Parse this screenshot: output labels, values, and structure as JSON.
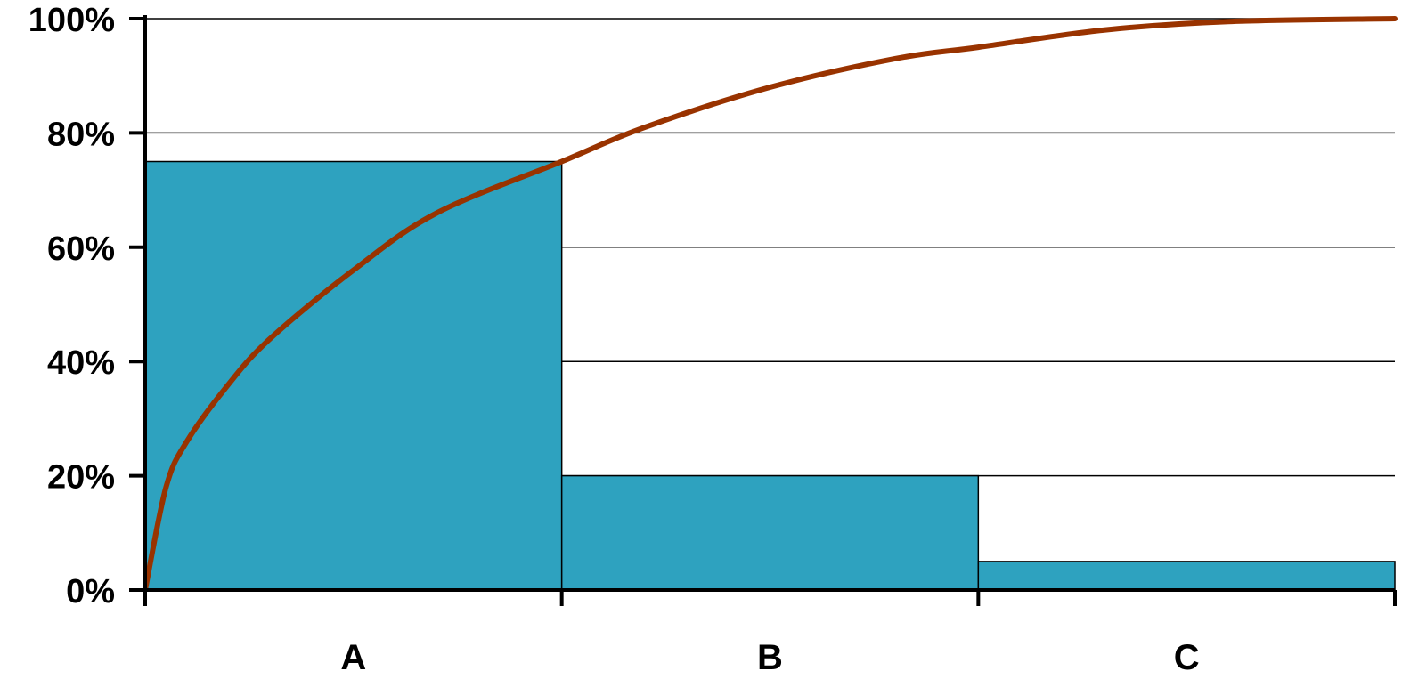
{
  "chart_data": {
    "type": "bar",
    "subtype": "pareto",
    "categories": [
      "A",
      "B",
      "C"
    ],
    "values": [
      75,
      20,
      5
    ],
    "cumulative_curve": {
      "x": [
        0,
        0.05,
        0.1,
        0.2,
        0.3,
        0.5,
        0.7,
        1.0,
        1.2,
        1.5,
        1.8,
        2.0,
        2.3,
        2.6,
        3.0
      ],
      "y": [
        0,
        18,
        26,
        36,
        44,
        56,
        66,
        75,
        81,
        88,
        93,
        95,
        98,
        99.5,
        100
      ]
    },
    "ylim": [
      0,
      100
    ],
    "yticks": [
      "0%",
      "20%",
      "40%",
      "60%",
      "80%",
      "100%"
    ],
    "ytick_values": [
      0,
      20,
      40,
      60,
      80,
      100
    ],
    "grid": true,
    "legend": "none",
    "title": "",
    "xlabel": "",
    "ylabel": "",
    "colors": {
      "bar": "#2ea2bf",
      "curve": "#993300",
      "axis": "#000000",
      "grid": "#000000"
    }
  }
}
